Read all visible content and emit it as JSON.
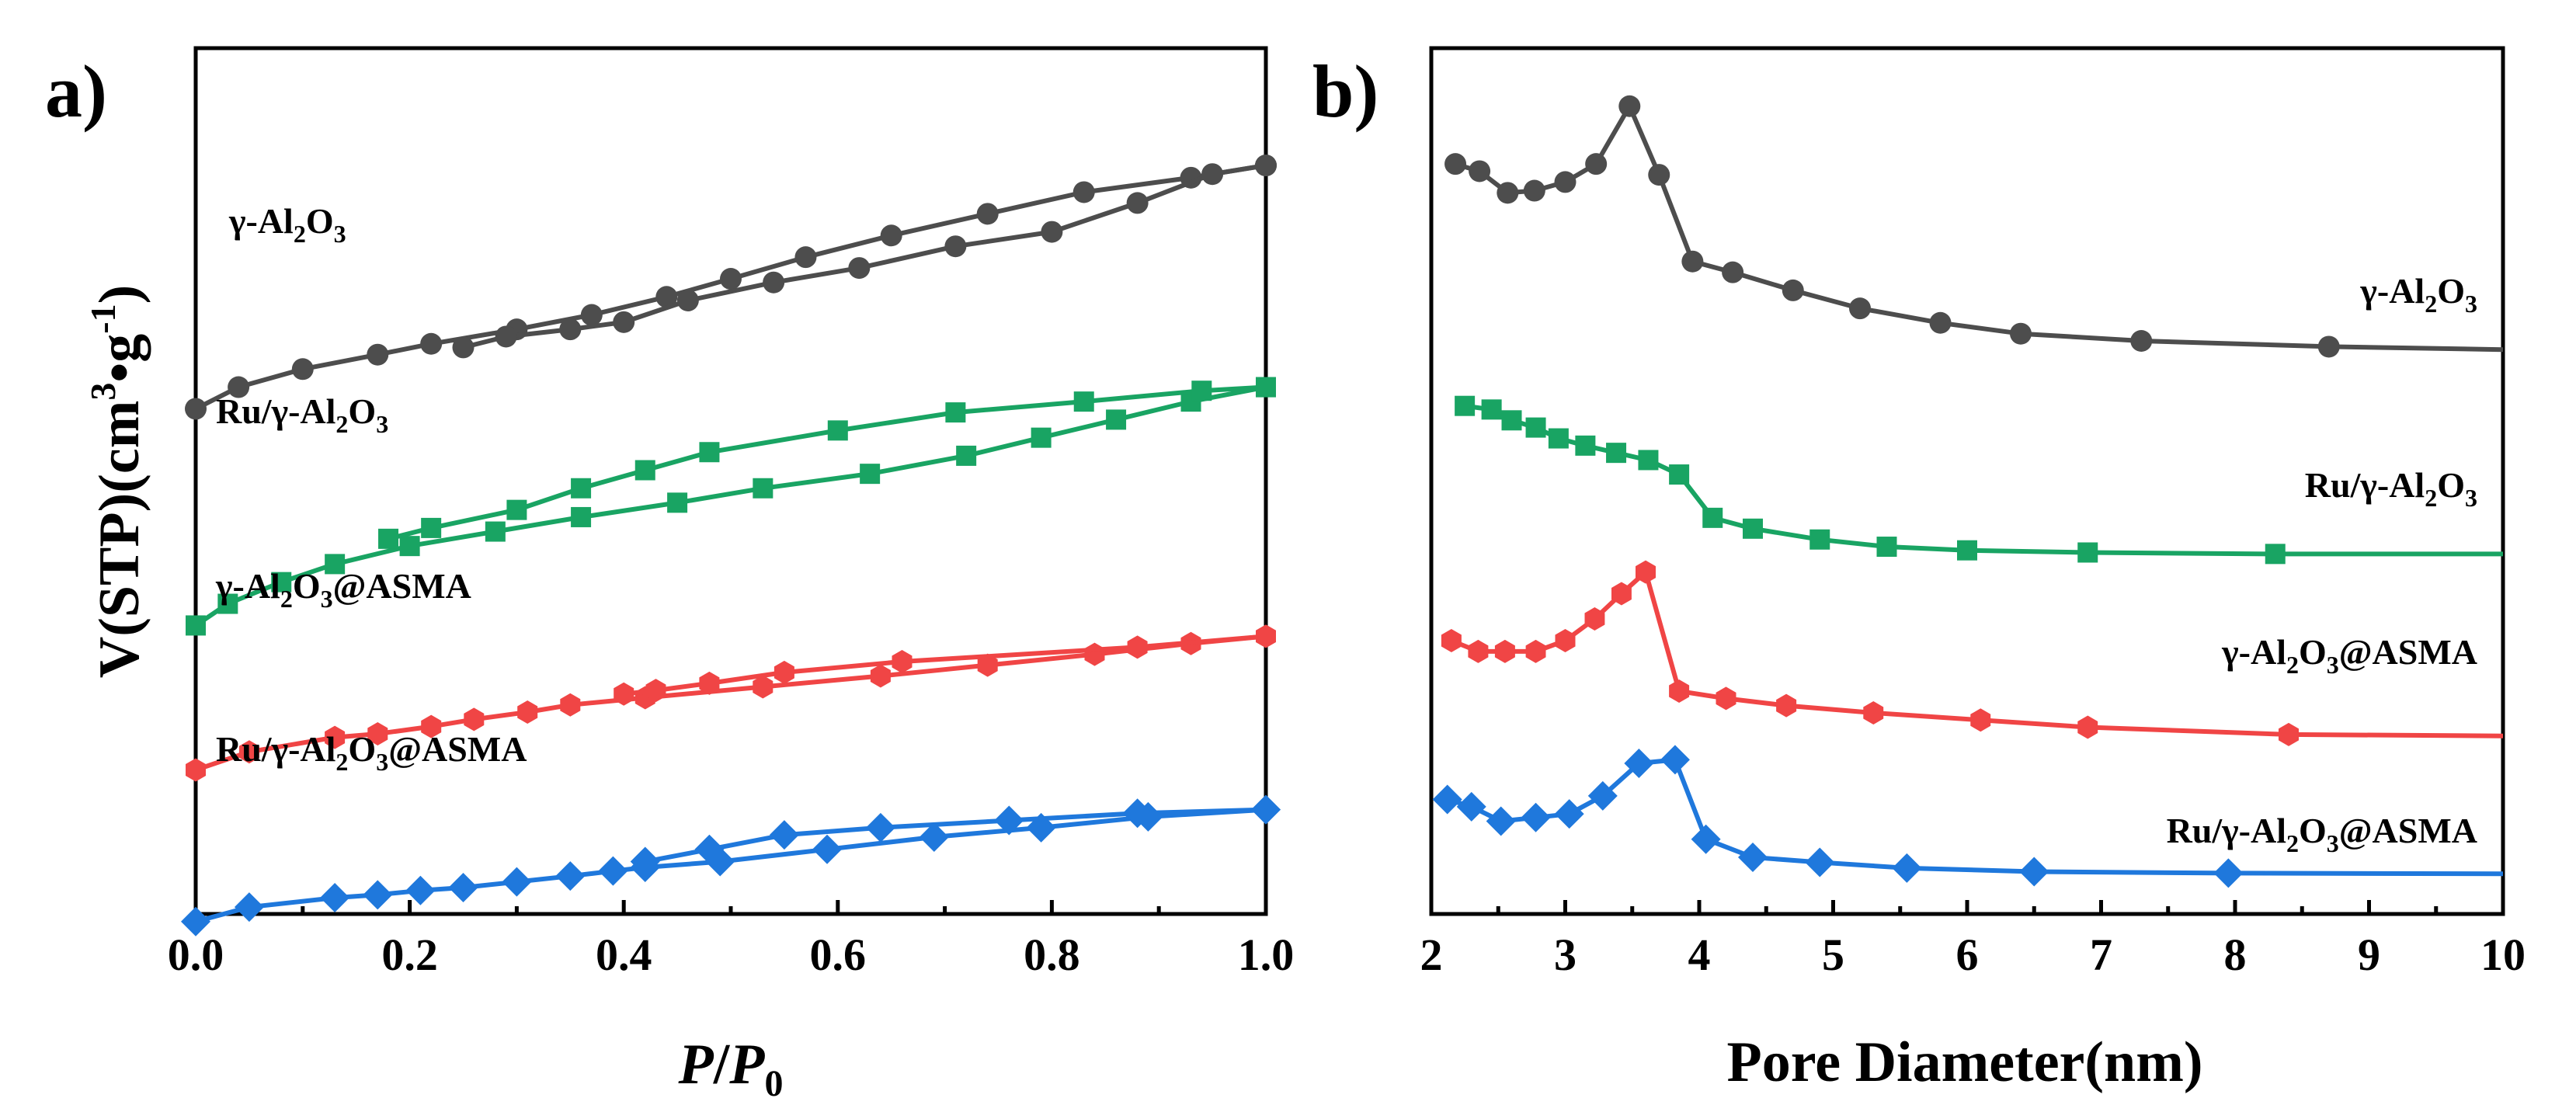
{
  "figure": {
    "panel_a_letter": "a)",
    "panel_b_letter": "b)",
    "y_axis_title_main": "V(STP)(cm",
    "y_axis_title_sup1": "3",
    "y_axis_title_mid": "•g",
    "y_axis_title_sup2": "-1",
    "y_axis_title_end": ")",
    "x_axis_a": {
      "italic_p": "P",
      "slash": "/",
      "italic_p0": "P",
      "sub": "0"
    },
    "x_axis_b_title": "Pore Diameter(nm)"
  },
  "colors": {
    "gray": "#4d4d4d",
    "green": "#19a463",
    "red": "#f04545",
    "blue": "#1f78dc"
  },
  "chart_data": [
    {
      "type": "line",
      "panel": "a",
      "title": "",
      "xlabel": "P/P0",
      "ylabel": "V(STP)(cm3•g-1)",
      "xlim": [
        0,
        1.0
      ],
      "ylim": [
        0,
        10
      ],
      "x_ticks": [
        "0.0",
        "0.2",
        "0.4",
        "0.6",
        "0.8",
        "1.0"
      ],
      "y_ticks_shown": false,
      "series": [
        {
          "name": "γ-Al2O3",
          "label_parts": [
            "γ-Al",
            "2",
            "O",
            "3"
          ],
          "color_key": "gray",
          "marker": "circle",
          "adsorption": [
            [
              0.0,
              6.35
            ],
            [
              0.04,
              6.65
            ],
            [
              0.1,
              6.9
            ],
            [
              0.17,
              7.1
            ],
            [
              0.22,
              7.25
            ],
            [
              0.3,
              7.45
            ],
            [
              0.37,
              7.65
            ],
            [
              0.44,
              7.9
            ],
            [
              0.5,
              8.15
            ],
            [
              0.57,
              8.45
            ],
            [
              0.65,
              8.75
            ],
            [
              0.74,
              9.05
            ],
            [
              0.83,
              9.35
            ],
            [
              0.93,
              9.55
            ],
            [
              1.0,
              9.72
            ]
          ],
          "desorption": [
            [
              1.0,
              9.72
            ],
            [
              0.95,
              9.6
            ],
            [
              0.88,
              9.2
            ],
            [
              0.8,
              8.8
            ],
            [
              0.71,
              8.6
            ],
            [
              0.62,
              8.3
            ],
            [
              0.54,
              8.1
            ],
            [
              0.46,
              7.85
            ],
            [
              0.4,
              7.55
            ],
            [
              0.35,
              7.45
            ],
            [
              0.29,
              7.35
            ],
            [
              0.25,
              7.2
            ]
          ]
        },
        {
          "name": "Ru/γ-Al2O3",
          "label_parts": [
            "Ru/γ-Al",
            "2",
            "O",
            "3"
          ],
          "color_key": "green",
          "marker": "square",
          "adsorption": [
            [
              0.0,
              3.35
            ],
            [
              0.03,
              3.65
            ],
            [
              0.08,
              3.95
            ],
            [
              0.13,
              4.2
            ],
            [
              0.2,
              4.45
            ],
            [
              0.28,
              4.65
            ],
            [
              0.36,
              4.85
            ],
            [
              0.45,
              5.05
            ],
            [
              0.53,
              5.25
            ],
            [
              0.63,
              5.45
            ],
            [
              0.72,
              5.7
            ],
            [
              0.79,
              5.95
            ],
            [
              0.86,
              6.2
            ],
            [
              0.93,
              6.45
            ],
            [
              1.0,
              6.65
            ]
          ],
          "desorption": [
            [
              1.0,
              6.65
            ],
            [
              0.94,
              6.6
            ],
            [
              0.83,
              6.45
            ],
            [
              0.71,
              6.3
            ],
            [
              0.6,
              6.05
            ],
            [
              0.48,
              5.75
            ],
            [
              0.42,
              5.5
            ],
            [
              0.36,
              5.25
            ],
            [
              0.3,
              4.95
            ],
            [
              0.22,
              4.7
            ],
            [
              0.18,
              4.55
            ]
          ]
        },
        {
          "name": "γ-Al2O3@ASMA",
          "label_parts": [
            "γ-Al",
            "2",
            "O",
            "3",
            "@ASMA"
          ],
          "color_key": "red",
          "marker": "hexagon",
          "adsorption": [
            [
              0.0,
              1.35
            ],
            [
              0.05,
              1.6
            ],
            [
              0.13,
              1.8
            ],
            [
              0.17,
              1.85
            ],
            [
              0.22,
              1.95
            ],
            [
              0.26,
              2.05
            ],
            [
              0.31,
              2.15
            ],
            [
              0.35,
              2.25
            ],
            [
              0.42,
              2.35
            ],
            [
              0.53,
              2.5
            ],
            [
              0.64,
              2.65
            ],
            [
              0.74,
              2.8
            ],
            [
              0.84,
              2.95
            ],
            [
              0.93,
              3.1
            ],
            [
              1.0,
              3.2
            ]
          ],
          "desorption": [
            [
              1.0,
              3.2
            ],
            [
              0.88,
              3.05
            ],
            [
              0.66,
              2.85
            ],
            [
              0.55,
              2.7
            ],
            [
              0.48,
              2.55
            ],
            [
              0.43,
              2.45
            ],
            [
              0.4,
              2.4
            ]
          ]
        },
        {
          "name": "Ru/γ-Al2O3@ASMA",
          "label_parts": [
            "Ru/γ-Al",
            "2",
            "O",
            "3",
            "@ASMA"
          ],
          "color_key": "blue",
          "marker": "diamond",
          "adsorption": [
            [
              0.0,
              -0.75
            ],
            [
              0.05,
              -0.55
            ],
            [
              0.13,
              -0.42
            ],
            [
              0.17,
              -0.38
            ],
            [
              0.21,
              -0.32
            ],
            [
              0.25,
              -0.28
            ],
            [
              0.3,
              -0.2
            ],
            [
              0.35,
              -0.12
            ],
            [
              0.39,
              -0.05
            ],
            [
              0.42,
              0.0
            ],
            [
              0.49,
              0.08
            ],
            [
              0.59,
              0.25
            ],
            [
              0.69,
              0.42
            ],
            [
              0.79,
              0.55
            ],
            [
              0.89,
              0.7
            ],
            [
              1.0,
              0.8
            ]
          ],
          "desorption": [
            [
              1.0,
              0.8
            ],
            [
              0.88,
              0.75
            ],
            [
              0.76,
              0.65
            ],
            [
              0.64,
              0.55
            ],
            [
              0.55,
              0.45
            ],
            [
              0.48,
              0.25
            ],
            [
              0.42,
              0.08
            ]
          ]
        }
      ]
    },
    {
      "type": "line",
      "panel": "b",
      "title": "",
      "xlabel": "Pore Diameter(nm)",
      "ylabel": "",
      "xlim": [
        2,
        10
      ],
      "ylim": [
        0,
        10
      ],
      "x_ticks": [
        "2",
        "3",
        "4",
        "5",
        "6",
        "7",
        "8",
        "9",
        "10"
      ],
      "y_ticks_shown": false,
      "series": [
        {
          "name": "γ-Al2O3",
          "label_parts": [
            "γ-Al",
            "2",
            "O",
            "3"
          ],
          "color_key": "gray",
          "marker": "circle",
          "x": [
            2.18,
            2.36,
            2.57,
            2.77,
            3.0,
            3.23,
            3.48,
            3.7,
            3.95,
            4.25,
            4.7,
            5.2,
            5.8,
            6.4,
            7.3,
            8.7,
            10.0
          ],
          "y": [
            9.45,
            9.35,
            9.05,
            9.08,
            9.2,
            9.45,
            10.25,
            9.3,
            8.1,
            7.95,
            7.7,
            7.45,
            7.25,
            7.1,
            7.0,
            6.92,
            6.88
          ],
          "marker_count": 16
        },
        {
          "name": "Ru/γ-Al2O3",
          "label_parts": [
            "Ru/γ-Al",
            "2",
            "O",
            "3"
          ],
          "color_key": "green",
          "marker": "square",
          "x": [
            2.25,
            2.45,
            2.6,
            2.78,
            2.95,
            3.15,
            3.38,
            3.62,
            3.85,
            4.1,
            4.4,
            4.9,
            5.4,
            6.0,
            6.9,
            8.3,
            10.0
          ],
          "y": [
            6.1,
            6.05,
            5.9,
            5.8,
            5.65,
            5.55,
            5.45,
            5.35,
            5.15,
            4.55,
            4.4,
            4.25,
            4.15,
            4.1,
            4.07,
            4.05,
            4.05
          ],
          "marker_count": 16
        },
        {
          "name": "γ-Al2O3@ASMA",
          "label_parts": [
            "γ-Al",
            "2",
            "O",
            "3",
            "@ASMA"
          ],
          "color_key": "red",
          "marker": "hexagon",
          "x": [
            2.15,
            2.35,
            2.55,
            2.78,
            3.0,
            3.22,
            3.42,
            3.6,
            3.85,
            4.2,
            4.65,
            5.3,
            6.1,
            6.9,
            8.4,
            10.0
          ],
          "y": [
            2.85,
            2.7,
            2.7,
            2.7,
            2.85,
            3.15,
            3.5,
            3.8,
            2.15,
            2.05,
            1.95,
            1.85,
            1.75,
            1.65,
            1.55,
            1.53
          ],
          "marker_count": 15
        },
        {
          "name": "Ru/γ-Al2O3@ASMA",
          "label_parts": [
            "Ru/γ-Al",
            "2",
            "O",
            "3",
            "@ASMA"
          ],
          "color_key": "blue",
          "marker": "diamond",
          "x": [
            2.12,
            2.3,
            2.52,
            2.78,
            3.03,
            3.28,
            3.55,
            3.82,
            4.05,
            4.4,
            4.9,
            5.55,
            6.5,
            7.95,
            10.0
          ],
          "y": [
            0.65,
            0.55,
            0.35,
            0.4,
            0.45,
            0.7,
            1.15,
            1.2,
            0.1,
            -0.15,
            -0.22,
            -0.3,
            -0.35,
            -0.37,
            -0.38
          ],
          "marker_count": 14
        }
      ]
    }
  ]
}
